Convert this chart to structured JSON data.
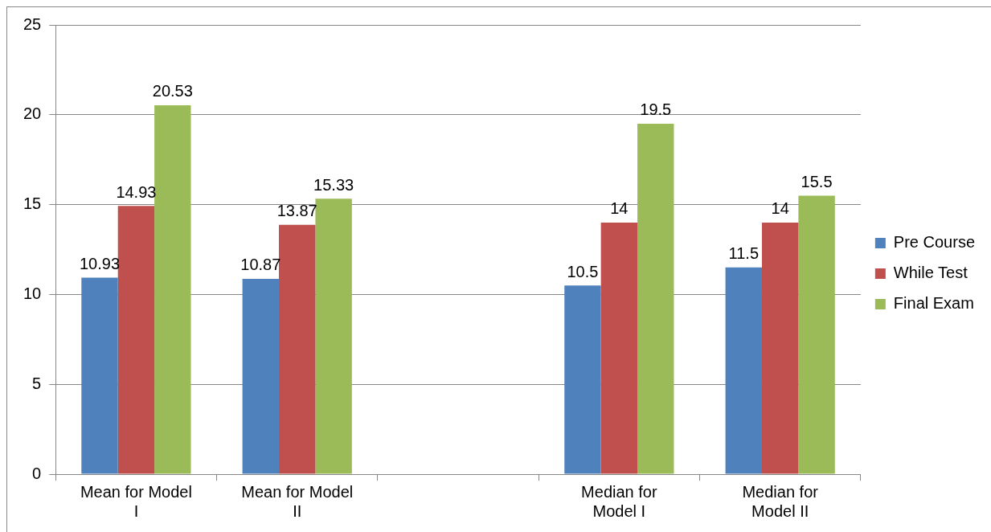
{
  "chart_data": {
    "type": "bar",
    "categories": [
      "Mean for Model I",
      "Mean for Model II",
      null,
      "Median for Model I",
      "Median for Model II"
    ],
    "series": [
      {
        "name": "Pre Course",
        "color": "#4f81bd",
        "values": [
          10.93,
          10.87,
          null,
          10.5,
          11.5
        ]
      },
      {
        "name": "While Test",
        "color": "#c0504d",
        "values": [
          14.93,
          13.87,
          null,
          14,
          14
        ]
      },
      {
        "name": "Final Exam",
        "color": "#9bbb59",
        "values": [
          20.53,
          15.33,
          null,
          19.5,
          15.5
        ]
      }
    ],
    "ylim": [
      0,
      25
    ],
    "yticks": [
      0,
      5,
      10,
      15,
      20,
      25
    ],
    "grid": "y",
    "legend": "right",
    "data_labels": true
  }
}
